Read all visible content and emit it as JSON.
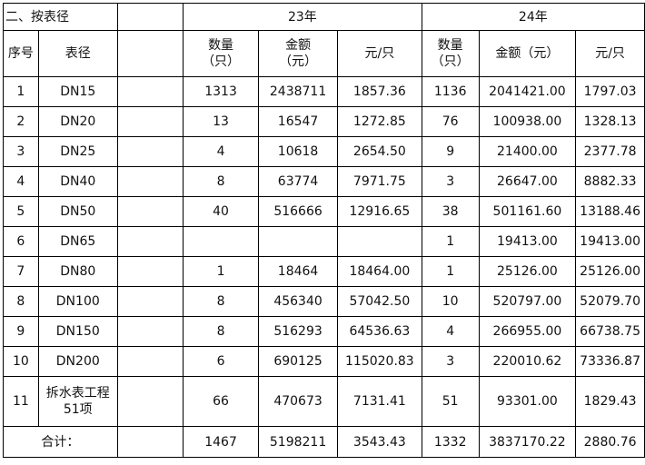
{
  "section_title": "二、按表径",
  "year_a": "23年",
  "year_b": "24年",
  "headers": {
    "index": "序号",
    "size": "表径",
    "qty_a": "数量（只）",
    "amount_a": "金额（元）",
    "unit_a": "元/只",
    "qty_b": "数量（只）",
    "amount_b": "金额（元）",
    "unit_b": "元/只"
  },
  "rows": [
    {
      "no": "1",
      "size": "DN15",
      "qa": "1313",
      "aa": "2438711",
      "ua": "1857.36",
      "qb": "1136",
      "ab": "2041421.00",
      "ub": "1797.03"
    },
    {
      "no": "2",
      "size": "DN20",
      "qa": "13",
      "aa": "16547",
      "ua": "1272.85",
      "qb": "76",
      "ab": "100938.00",
      "ub": "1328.13"
    },
    {
      "no": "3",
      "size": "DN25",
      "qa": "4",
      "aa": "10618",
      "ua": "2654.50",
      "qb": "9",
      "ab": "21400.00",
      "ub": "2377.78"
    },
    {
      "no": "4",
      "size": "DN40",
      "qa": "8",
      "aa": "63774",
      "ua": "7971.75",
      "qb": "3",
      "ab": "26647.00",
      "ub": "8882.33"
    },
    {
      "no": "5",
      "size": "DN50",
      "qa": "40",
      "aa": "516666",
      "ua": "12916.65",
      "qb": "38",
      "ab": "501161.60",
      "ub": "13188.46"
    },
    {
      "no": "6",
      "size": "DN65",
      "qa": "",
      "aa": "",
      "ua": "",
      "qb": "1",
      "ab": "19413.00",
      "ub": "19413.00"
    },
    {
      "no": "7",
      "size": "DN80",
      "qa": "1",
      "aa": "18464",
      "ua": "18464.00",
      "qb": "1",
      "ab": "25126.00",
      "ub": "25126.00"
    },
    {
      "no": "8",
      "size": "DN100",
      "qa": "8",
      "aa": "456340",
      "ua": "57042.50",
      "qb": "10",
      "ab": "520797.00",
      "ub": "52079.70"
    },
    {
      "no": "9",
      "size": "DN150",
      "qa": "8",
      "aa": "516293",
      "ua": "64536.63",
      "qb": "4",
      "ab": "266955.00",
      "ub": "66738.75"
    },
    {
      "no": "10",
      "size": "DN200",
      "qa": "6",
      "aa": "690125",
      "ua": "115020.83",
      "qb": "3",
      "ab": "220010.62",
      "ub": "73336.87"
    },
    {
      "no": "11",
      "size": "拆水表工程51项",
      "qa": "66",
      "aa": "470673",
      "ua": "7131.41",
      "qb": "51",
      "ab": "93301.00",
      "ub": "1829.43"
    }
  ],
  "total": {
    "label": "合计：",
    "qa": "1467",
    "aa": "5198211",
    "ua": "3543.43",
    "qb": "1332",
    "ab": "3837170.22",
    "ub": "2880.76"
  }
}
